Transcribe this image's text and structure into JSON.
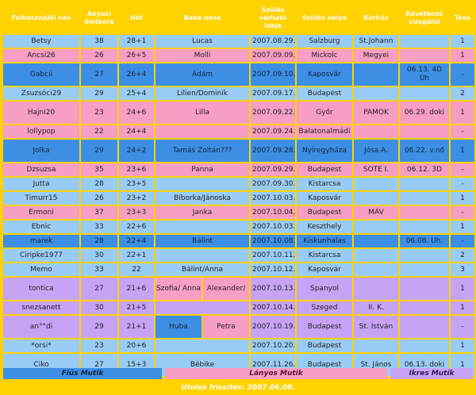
{
  "headers": [
    "Felhasználói név",
    "Anyuci életkora",
    "Hét",
    "Baba neve",
    "Szülés várható ideje",
    "Szülés helye",
    "Kórház",
    "Következő vizsgálat",
    "Tesó"
  ],
  "rows": [
    {
      "user": "Betsy",
      "age": "38",
      "week": "28+1",
      "baby": "Lucas",
      "due": "2007.08.29.",
      "place": "Salzburg",
      "hospital": "St.Johann",
      "next": "",
      "sib": "1",
      "color": "b"
    },
    {
      "user": "Ancsi26",
      "age": "26",
      "week": "26+5",
      "baby": "Molli",
      "due": "2007.09.09.",
      "place": "Mickolc",
      "hospital": "Megyei",
      "next": "",
      "sib": "1",
      "color": "p"
    },
    {
      "user": "Gabcii",
      "age": "27",
      "week": "26+4",
      "baby": "Ádám",
      "due": "2007.09.10.",
      "place": "Kaposvár",
      "hospital": "",
      "next": "06.13. 4D Uh",
      "sib": "-",
      "color": "bd"
    },
    {
      "user": "Zsuzsóci29",
      "age": "29",
      "week": "25+4",
      "baby": "Lilien/Dominik",
      "due": "2007.09.17.",
      "place": "Budapest",
      "hospital": "",
      "next": "",
      "sib": "2",
      "color": "b"
    },
    {
      "user": "Hajni20",
      "age": "23",
      "week": "24+6",
      "baby": "Lilla",
      "due": "2007.09.22.",
      "place": "Győr",
      "hospital": "PAMOK",
      "next": "06.29. doki",
      "sib": "1",
      "color": "p"
    },
    {
      "user": "lollypop",
      "age": "22",
      "week": "24+4",
      "baby": "",
      "due": "2007.09.24.",
      "place": "Balatonalmádi",
      "hospital": "",
      "next": "",
      "sib": "-",
      "color": "p"
    },
    {
      "user": "Jolka",
      "age": "29",
      "week": "24+2",
      "baby": "Tamás Zoltán???",
      "due": "2007.09.28.",
      "place": "Nyíregyháza",
      "hospital": "Jósa A.",
      "next": "06.22. v.nő",
      "sib": "1",
      "color": "bd"
    },
    {
      "user": "Dzsuzsa",
      "age": "35",
      "week": "23+6",
      "baby": "Panna",
      "due": "2007.09.29.",
      "place": "Budapest",
      "hospital": "SOTE I.",
      "next": "06.12. 3D",
      "sib": "-",
      "color": "p"
    },
    {
      "user": "Jutta",
      "age": "28",
      "week": "23+5",
      "baby": "",
      "due": "2007.09.30.",
      "place": "Kistarcsa",
      "hospital": "",
      "next": "",
      "sib": "-",
      "color": "b"
    },
    {
      "user": "Timurr15",
      "age": "26",
      "week": "23+2",
      "baby": "Bíborka/Jánoska",
      "due": "2007.10.03.",
      "place": "Kaposvár",
      "hospital": "",
      "next": "",
      "sib": "1",
      "color": "b"
    },
    {
      "user": "Ermoni",
      "age": "37",
      "week": "23+3",
      "baby": "Janka",
      "due": "2007.10.04.",
      "place": "Budapest",
      "hospital": "MÁV",
      "next": "",
      "sib": "-",
      "color": "p"
    },
    {
      "user": "Ebnic",
      "age": "33",
      "week": "22+6",
      "baby": "",
      "due": "2007.10.03.",
      "place": "Keszthely",
      "hospital": "",
      "next": "",
      "sib": "1",
      "color": "b"
    },
    {
      "user": "marek",
      "age": "28",
      "week": "22+4",
      "baby": "Bálint",
      "due": "2007.10.08.",
      "place": "Kiskunhalas",
      "hospital": "",
      "next": "06.08. Uh.",
      "sib": "-",
      "color": "bd"
    },
    {
      "user": "Ciripke1977",
      "age": "30",
      "week": "22+1",
      "baby": "",
      "due": "2007.10.11.",
      "place": "Kistarcsa",
      "hospital": "",
      "next": "",
      "sib": "2",
      "color": "b"
    },
    {
      "user": "Memo",
      "age": "33",
      "week": "22",
      "baby": "Bálint/Anna",
      "due": "2007.10.12.",
      "place": "Kaposvár",
      "hospital": "",
      "next": "",
      "sib": "3",
      "color": "b"
    },
    {
      "user": "tontica",
      "age": "27",
      "week": "21+6",
      "baby_a": "Szofia/ Anna",
      "baby_b": "Alexander/",
      "due": "2007.10.13.",
      "place": "Spanyol",
      "hospital": "",
      "next": "",
      "sib": "1",
      "color": "v"
    },
    {
      "user": "snezsanett",
      "age": "30",
      "week": "21+5",
      "baby": "",
      "due": "2007.10.14.",
      "place": "Szeged",
      "hospital": "II. K.",
      "next": "",
      "sib": "1",
      "color": "v"
    },
    {
      "user": "an°°di",
      "age": "29",
      "week": "21+1",
      "baby_a": "Huba",
      "baby_b": "Petra",
      "due": "2007.10.19.",
      "place": "Budapest",
      "hospital": "St. István",
      "next": "",
      "sib": "-",
      "color": "v"
    },
    {
      "user": "*orsi*",
      "age": "23",
      "week": "20+6",
      "baby": "",
      "due": "2007.10.20.",
      "place": "Budapest",
      "hospital": "",
      "next": "",
      "sib": "1",
      "color": "b"
    },
    {
      "user": "Ciko",
      "age": "27",
      "week": "15+3",
      "baby": "Bébike",
      "due": "2007.11.26.",
      "place": "Budapest",
      "hospital": "St. János",
      "next": "06.13. doki",
      "sib": "1",
      "color": "b"
    }
  ],
  "legend": {
    "boys": "Fiús Mutik",
    "girls": "Lányos Mutik",
    "twins": "Ikres Mutik"
  },
  "colors": {
    "frame": "#ffd200",
    "blue": "#99ccf5",
    "blue_dark": "#3d8fe6",
    "pink": "#f79ec4",
    "violet": "#c7a3f5"
  },
  "footer": "Utolsó frissítés: 2007.06.08."
}
